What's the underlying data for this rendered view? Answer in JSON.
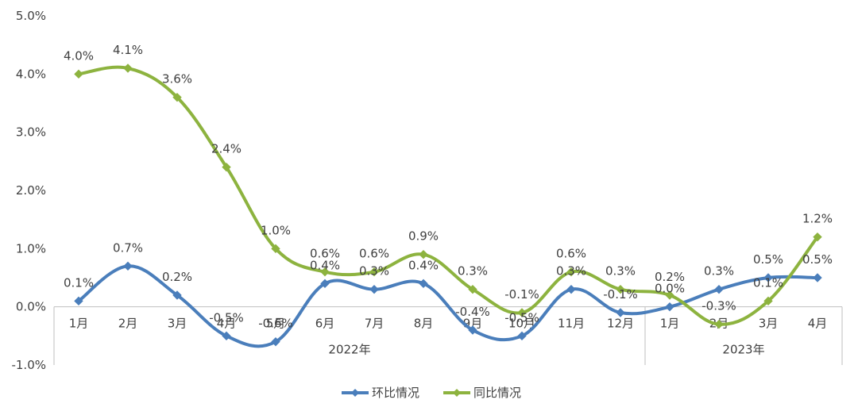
{
  "chart_data": {
    "type": "line",
    "title": "",
    "xlabel": "",
    "ylabel": "",
    "ylim": [
      -1.0,
      5.0
    ],
    "y_ticks": [
      "-1.0%",
      "0.0%",
      "1.0%",
      "2.0%",
      "3.0%",
      "4.0%",
      "5.0%"
    ],
    "y_tick_values": [
      -1,
      0,
      1,
      2,
      3,
      4,
      5
    ],
    "categories": [
      "1月",
      "2月",
      "3月",
      "4月",
      "5月",
      "6月",
      "7月",
      "8月",
      "9月",
      "10月",
      "11月",
      "12月",
      "1月",
      "2月",
      "3月",
      "4月"
    ],
    "groups": [
      {
        "label": "2022年",
        "count": 12
      },
      {
        "label": "2023年",
        "count": 4
      }
    ],
    "series": [
      {
        "name": "环比情况",
        "color": "#4A7EBB",
        "values": [
          0.1,
          0.7,
          0.2,
          -0.5,
          -0.6,
          0.4,
          0.3,
          0.4,
          -0.4,
          -0.5,
          0.3,
          -0.1,
          0.0,
          0.3,
          0.5,
          0.5
        ],
        "labels": [
          "0.1%",
          "0.7%",
          "0.2%",
          "-0.5%",
          "-0.6%",
          "0.4%",
          "0.3%",
          "0.4%",
          "-0.4%",
          "-0.5%",
          "0.3%",
          "-0.1%",
          "0.0%",
          "0.3%",
          "0.5%",
          "0.5%"
        ]
      },
      {
        "name": "同比情况",
        "color": "#8DB33F",
        "values": [
          4.0,
          4.1,
          3.6,
          2.4,
          1.0,
          0.6,
          0.6,
          0.9,
          0.3,
          -0.1,
          0.6,
          0.3,
          0.2,
          -0.3,
          0.1,
          1.2
        ],
        "labels": [
          "4.0%",
          "4.1%",
          "3.6%",
          "2.4%",
          "1.0%",
          "0.6%",
          "0.6%",
          "0.9%",
          "0.3%",
          "-0.1%",
          "0.6%",
          "0.3%",
          "0.2%",
          "-0.3%",
          "0.1%",
          "1.2%"
        ]
      }
    ],
    "legend_position": "bottom",
    "grid": false
  }
}
